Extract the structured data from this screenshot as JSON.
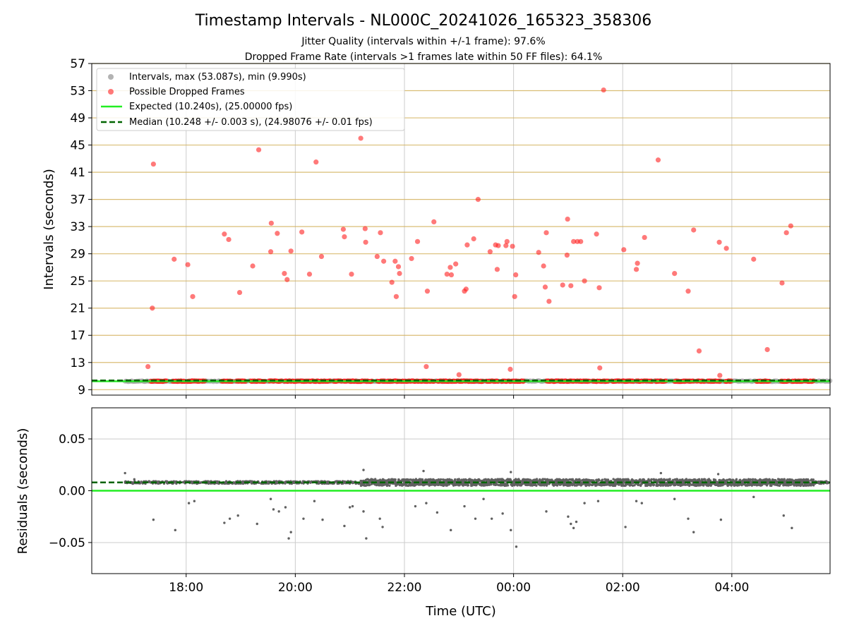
{
  "title": "Timestamp Intervals - NL000C_20241026_165323_358306",
  "subtitle_1": "Jitter Quality (intervals within +/-1 frame): 97.6%",
  "subtitle_2": "Dropped Frame Rate (intervals >1 frames late within 50 FF files): 64.1%",
  "colors": {
    "intervals": "#a0a0a0",
    "dropped": "#ff2020",
    "expected": "#22ee22",
    "median": "#006400",
    "hline": "#d4b25e",
    "grid": "#cccccc",
    "residuals": "#606060"
  },
  "chart_data": [
    {
      "type": "scatter",
      "ylabel": "Intervals (seconds)",
      "ylim": [
        8.2,
        57
      ],
      "yticks": [
        "9",
        "13",
        "17",
        "21",
        "25",
        "29",
        "33",
        "37",
        "41",
        "45",
        "49",
        "53",
        "57"
      ],
      "ytick_values": [
        9,
        13,
        17,
        21,
        25,
        29,
        33,
        37,
        41,
        45,
        49,
        53,
        57
      ],
      "xlim_hours": [
        16.27,
        29.8
      ],
      "xticks": [
        "18:00",
        "20:00",
        "22:00",
        "00:00",
        "02:00",
        "04:00"
      ],
      "xtick_hours": [
        18,
        20,
        22,
        24,
        26,
        28
      ],
      "grid": true,
      "horizontal_lines_at": [
        9,
        13,
        17,
        21,
        25,
        29,
        33,
        37,
        41,
        45,
        49,
        53,
        57
      ],
      "legend_position": "top-left",
      "legend": [
        "Intervals, max (53.087s), min (9.990s)",
        "Possible Dropped Frames",
        "Expected (10.240s), (25.00000 fps)",
        "Median (10.248 +/- 0.003 s), (24.98076 +/- 0.01 fps)"
      ],
      "expected_value": 10.24,
      "median_value": 10.248,
      "intervals_x_range_hours": [
        16.88,
        29.8
      ],
      "intervals_base_value": 10.25,
      "dropped_baseline_segments_hours": [
        [
          17.35,
          17.65
        ],
        [
          17.75,
          17.98
        ],
        [
          18.02,
          18.35
        ],
        [
          18.65,
          18.85
        ],
        [
          18.92,
          19.1
        ],
        [
          19.18,
          19.45
        ],
        [
          19.52,
          19.75
        ],
        [
          19.8,
          20.08
        ],
        [
          20.1,
          20.65
        ],
        [
          20.7,
          20.85
        ],
        [
          20.88,
          21.42
        ],
        [
          21.5,
          21.65
        ],
        [
          21.68,
          22.55
        ],
        [
          22.6,
          23.45
        ],
        [
          23.5,
          23.72
        ],
        [
          23.78,
          24.2
        ],
        [
          24.6,
          25.4
        ],
        [
          25.45,
          25.75
        ],
        [
          25.8,
          25.95
        ],
        [
          25.98,
          26.2
        ],
        [
          26.25,
          26.55
        ],
        [
          26.6,
          26.8
        ],
        [
          26.95,
          27.3
        ],
        [
          27.35,
          27.5
        ],
        [
          27.55,
          27.8
        ],
        [
          27.88,
          28.0
        ],
        [
          28.45,
          28.7
        ],
        [
          28.9,
          29.05
        ],
        [
          29.1,
          29.5
        ]
      ],
      "dropped_points": [
        [
          17.3,
          12.4
        ],
        [
          17.38,
          21.0
        ],
        [
          17.4,
          42.2
        ],
        [
          17.78,
          28.2
        ],
        [
          18.03,
          27.4
        ],
        [
          18.12,
          22.7
        ],
        [
          18.7,
          31.9
        ],
        [
          18.78,
          31.1
        ],
        [
          18.98,
          23.3
        ],
        [
          19.22,
          27.2
        ],
        [
          19.33,
          44.3
        ],
        [
          19.55,
          29.3
        ],
        [
          19.56,
          33.5
        ],
        [
          19.67,
          32.0
        ],
        [
          19.8,
          26.1
        ],
        [
          19.85,
          25.2
        ],
        [
          19.92,
          29.4
        ],
        [
          20.12,
          32.2
        ],
        [
          20.26,
          26.0
        ],
        [
          20.38,
          42.5
        ],
        [
          20.48,
          28.6
        ],
        [
          20.88,
          32.6
        ],
        [
          20.9,
          31.5
        ],
        [
          21.03,
          26.0
        ],
        [
          21.2,
          46.0
        ],
        [
          21.28,
          32.7
        ],
        [
          21.29,
          30.7
        ],
        [
          21.5,
          28.6
        ],
        [
          21.56,
          32.1
        ],
        [
          21.62,
          27.9
        ],
        [
          21.77,
          24.8
        ],
        [
          21.83,
          27.9
        ],
        [
          21.85,
          22.7
        ],
        [
          21.89,
          27.1
        ],
        [
          21.91,
          26.1
        ],
        [
          22.13,
          28.3
        ],
        [
          22.24,
          30.8
        ],
        [
          22.4,
          12.4
        ],
        [
          22.42,
          23.5
        ],
        [
          22.54,
          33.7
        ],
        [
          22.78,
          26.0
        ],
        [
          22.84,
          27.0
        ],
        [
          22.86,
          25.9
        ],
        [
          22.94,
          27.5
        ],
        [
          23.0,
          11.2
        ],
        [
          23.1,
          23.5
        ],
        [
          23.13,
          23.8
        ],
        [
          23.15,
          30.3
        ],
        [
          23.27,
          31.2
        ],
        [
          23.35,
          37.0
        ],
        [
          23.57,
          29.3
        ],
        [
          23.67,
          30.3
        ],
        [
          23.7,
          26.7
        ],
        [
          23.72,
          30.2
        ],
        [
          23.86,
          30.2
        ],
        [
          23.88,
          30.8
        ],
        [
          23.94,
          12.0
        ],
        [
          23.98,
          30.1
        ],
        [
          24.02,
          22.7
        ],
        [
          24.04,
          25.9
        ],
        [
          24.46,
          29.2
        ],
        [
          24.55,
          27.2
        ],
        [
          24.58,
          24.1
        ],
        [
          24.6,
          32.1
        ],
        [
          24.65,
          22.0
        ],
        [
          24.9,
          24.4
        ],
        [
          24.98,
          28.8
        ],
        [
          24.99,
          34.1
        ],
        [
          25.05,
          24.3
        ],
        [
          25.1,
          30.8
        ],
        [
          25.17,
          30.8
        ],
        [
          25.23,
          30.8
        ],
        [
          25.3,
          25.0
        ],
        [
          25.52,
          31.9
        ],
        [
          25.57,
          24.0
        ],
        [
          25.58,
          12.2
        ],
        [
          25.65,
          53.1
        ],
        [
          26.02,
          29.6
        ],
        [
          26.25,
          26.7
        ],
        [
          26.27,
          27.6
        ],
        [
          26.4,
          31.4
        ],
        [
          26.65,
          42.8
        ],
        [
          26.95,
          26.1
        ],
        [
          27.2,
          23.5
        ],
        [
          27.3,
          32.5
        ],
        [
          27.4,
          14.7
        ],
        [
          27.77,
          30.7
        ],
        [
          27.78,
          11.1
        ],
        [
          27.9,
          29.8
        ],
        [
          28.4,
          28.2
        ],
        [
          28.65,
          14.9
        ],
        [
          28.92,
          24.7
        ],
        [
          29.0,
          32.1
        ],
        [
          29.08,
          33.1
        ]
      ]
    },
    {
      "type": "scatter",
      "ylabel": "Residuals (seconds)",
      "xlabel": "Time (UTC)",
      "ylim": [
        -0.08,
        0.08
      ],
      "yticks": [
        "−0.05",
        "0.00",
        "0.05"
      ],
      "ytick_values": [
        -0.05,
        0.0,
        0.05
      ],
      "xlim_hours": [
        16.27,
        29.8
      ],
      "xticks": [
        "18:00",
        "20:00",
        "22:00",
        "00:00",
        "02:00",
        "04:00"
      ],
      "xtick_hours": [
        18,
        20,
        22,
        24,
        26,
        28
      ],
      "grid": true,
      "expected_residual": 0.0,
      "median_residual": 0.008,
      "residual_band_center": 0.008,
      "outlier_points": [
        [
          16.88,
          0.017
        ],
        [
          17.05,
          0.011
        ],
        [
          17.4,
          -0.028
        ],
        [
          17.8,
          -0.038
        ],
        [
          18.05,
          -0.012
        ],
        [
          18.15,
          -0.01
        ],
        [
          18.7,
          -0.031
        ],
        [
          18.8,
          -0.027
        ],
        [
          18.95,
          -0.024
        ],
        [
          19.3,
          -0.032
        ],
        [
          19.55,
          -0.008
        ],
        [
          19.6,
          -0.018
        ],
        [
          19.7,
          -0.02
        ],
        [
          19.82,
          -0.016
        ],
        [
          19.88,
          -0.046
        ],
        [
          19.92,
          -0.04
        ],
        [
          20.15,
          -0.027
        ],
        [
          20.35,
          -0.01
        ],
        [
          20.5,
          -0.028
        ],
        [
          20.9,
          -0.034
        ],
        [
          21.0,
          -0.016
        ],
        [
          21.05,
          -0.015
        ],
        [
          21.25,
          -0.02
        ],
        [
          21.3,
          -0.046
        ],
        [
          21.55,
          -0.027
        ],
        [
          21.6,
          -0.035
        ],
        [
          22.2,
          -0.015
        ],
        [
          22.4,
          -0.012
        ],
        [
          22.6,
          -0.021
        ],
        [
          22.85,
          -0.038
        ],
        [
          23.1,
          -0.015
        ],
        [
          23.3,
          -0.027
        ],
        [
          23.45,
          -0.008
        ],
        [
          23.6,
          -0.027
        ],
        [
          23.8,
          -0.022
        ],
        [
          23.95,
          -0.038
        ],
        [
          24.05,
          -0.054
        ],
        [
          24.6,
          -0.02
        ],
        [
          25.0,
          -0.025
        ],
        [
          25.05,
          -0.032
        ],
        [
          25.1,
          -0.036
        ],
        [
          25.15,
          -0.03
        ],
        [
          25.3,
          -0.012
        ],
        [
          25.55,
          -0.01
        ],
        [
          26.05,
          -0.035
        ],
        [
          26.25,
          -0.01
        ],
        [
          26.35,
          -0.012
        ],
        [
          26.95,
          -0.008
        ],
        [
          27.2,
          -0.027
        ],
        [
          27.3,
          -0.04
        ],
        [
          27.8,
          -0.028
        ],
        [
          28.4,
          -0.006
        ],
        [
          28.95,
          -0.024
        ],
        [
          29.1,
          -0.036
        ],
        [
          21.25,
          0.02
        ],
        [
          22.35,
          0.019
        ],
        [
          23.95,
          0.018
        ],
        [
          26.7,
          0.017
        ],
        [
          27.75,
          0.016
        ]
      ]
    }
  ]
}
